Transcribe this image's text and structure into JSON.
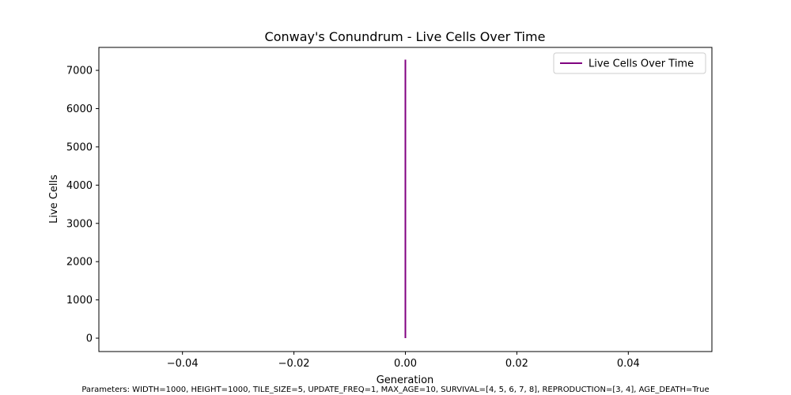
{
  "chart_data": {
    "type": "line",
    "title": "Conway's Conundrum - Live Cells Over Time",
    "xlabel": "Generation",
    "ylabel": "Live Cells",
    "xlim": [
      -0.055,
      0.055
    ],
    "ylim": [
      -350,
      7600
    ],
    "x_ticks": [
      -0.04,
      -0.02,
      0.0,
      0.02,
      0.04
    ],
    "x_tick_labels": [
      "−0.04",
      "−0.02",
      "0.00",
      "0.02",
      "0.04"
    ],
    "y_ticks": [
      0,
      1000,
      2000,
      3000,
      4000,
      5000,
      6000,
      7000
    ],
    "y_tick_labels": [
      "0",
      "1000",
      "2000",
      "3000",
      "4000",
      "5000",
      "6000",
      "7000"
    ],
    "grid": false,
    "legend_position": "top-right",
    "series": [
      {
        "name": "Live Cells Over Time",
        "color": "#800080",
        "points": [
          [
            0,
            0
          ],
          [
            0,
            7280
          ]
        ]
      }
    ]
  },
  "footer_text": "Parameters: WIDTH=1000, HEIGHT=1000, TILE_SIZE=5, UPDATE_FREQ=1, MAX_AGE=10, SURVIVAL=[4, 5, 6, 7, 8], REPRODUCTION=[3, 4], AGE_DEATH=True"
}
